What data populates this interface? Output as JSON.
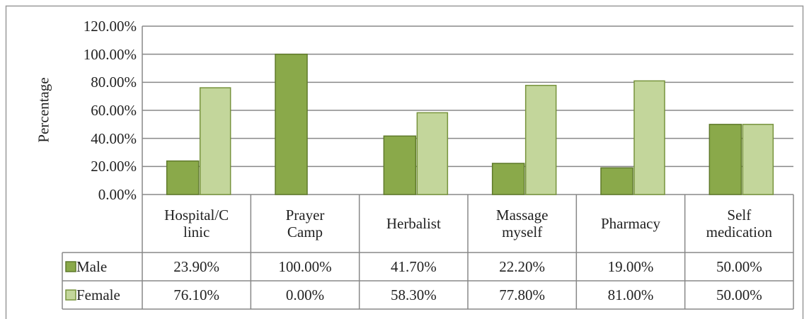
{
  "chart_data": {
    "type": "bar",
    "y_label": "Percentage",
    "categories": [
      "Hospital/C\nlinic",
      "Prayer\nCamp",
      "Herbalist",
      "Massage\nmyself",
      "Pharmacy",
      "Self\nmedication"
    ],
    "series": [
      {
        "name": "Male",
        "color": "#8aa94a",
        "values": [
          23.9,
          100,
          41.7,
          22.2,
          19,
          50
        ],
        "value_labels": [
          "23.90%",
          "100.00%",
          "41.70%",
          "22.20%",
          "19.00%",
          "50.00%"
        ]
      },
      {
        "name": "Female",
        "color": "#c3d69b",
        "values": [
          76.1,
          0,
          58.3,
          77.8,
          81,
          50
        ],
        "value_labels": [
          "76.10%",
          "0.00%",
          "58.30%",
          "77.80%",
          "81.00%",
          "50.00%"
        ]
      }
    ],
    "ylim": [
      0,
      120
    ],
    "yticks": [
      {
        "value": 0,
        "label": "0.00%"
      },
      {
        "value": 20,
        "label": "20.00%"
      },
      {
        "value": 40,
        "label": "40.00%"
      },
      {
        "value": 60,
        "label": "60.00%"
      },
      {
        "value": 80,
        "label": "80.00%"
      },
      {
        "value": 100,
        "label": "100.00%"
      },
      {
        "value": 120,
        "label": "120.00%"
      }
    ],
    "grid": true
  }
}
